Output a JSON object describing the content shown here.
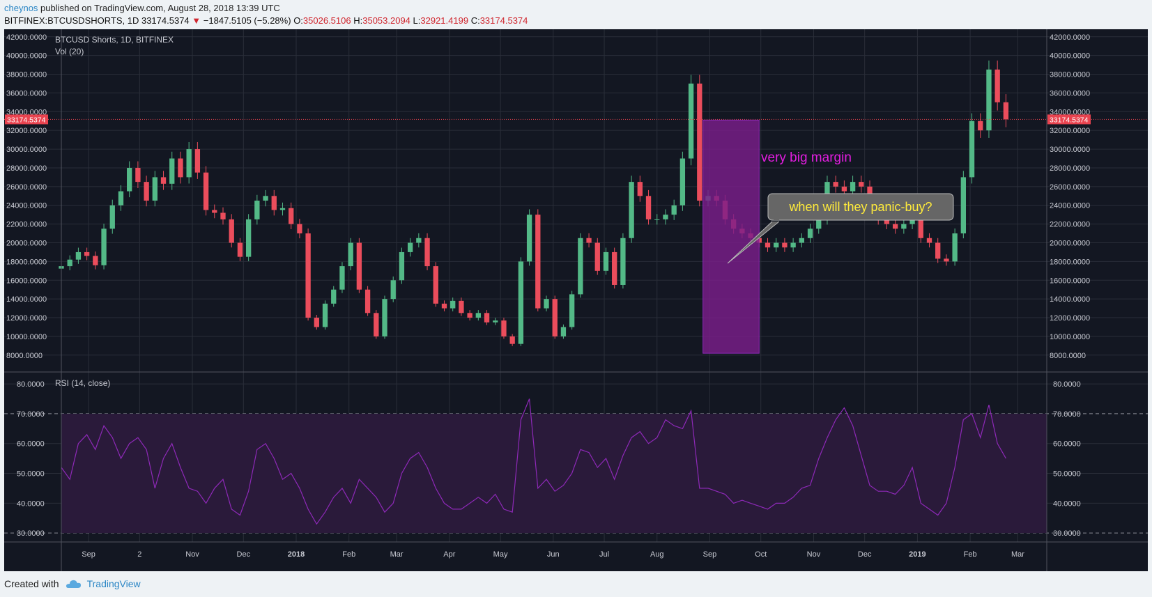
{
  "header": {
    "author": "cheynos",
    "published": " published on TradingView.com, August 28, 2018 13:39 UTC"
  },
  "symbol_line": {
    "symbol": "BITFINEX:BTCUSDSHORTS, 1D",
    "last": "33174.5374",
    "change": "−1847.5105 (−5.28%)",
    "o_label": "O:",
    "o": "35026.5106",
    "h_label": "H:",
    "h": "35053.2094",
    "l_label": "L:",
    "l": "32921.4199",
    "c_label": "C:",
    "c": "33174.5374"
  },
  "legend": {
    "main": "BTCUSD Shorts, 1D, BITFINEX",
    "vol": "Vol (20)",
    "rsi": "RSI (14, close)"
  },
  "price_marker": "33174.5374",
  "annotations": {
    "margin_text": "very big margin",
    "callout_text": "when will they panic-buy?"
  },
  "footer": {
    "created_with": "Created with",
    "brand": "TradingView"
  },
  "colors": {
    "background": "#131722",
    "grid": "#2a2e39",
    "up": "#53b987",
    "down": "#eb4d5c",
    "rsi_line": "#8e29b8",
    "rsi_band": "#2a1a3a",
    "marker": "#e9434f",
    "box": "#7a1d8a",
    "margin_text": "#e31de0",
    "callout_bg": "#666666",
    "callout_text": "#ffeb3b"
  },
  "chart_data": [
    {
      "type": "candlestick",
      "title": "BTCUSD Shorts, 1D, BITFINEX",
      "x_ticks": [
        "Sep",
        "2",
        "Nov",
        "Dec",
        "2018",
        "Feb",
        "Mar",
        "Apr",
        "May",
        "Jun",
        "Jul",
        "Aug",
        "Sep",
        "Oct",
        "Nov",
        "Dec",
        "2019",
        "Feb",
        "Mar"
      ],
      "y_ticks": [
        "42000.0000",
        "40000.0000",
        "38000.0000",
        "36000.0000",
        "34000.0000",
        "32000.0000",
        "30000.0000",
        "28000.0000",
        "26000.0000",
        "24000.0000",
        "22000.0000",
        "20000.0000",
        "18000.0000",
        "16000.0000",
        "14000.0000",
        "12000.0000",
        "10000.0000",
        "8000.0000"
      ],
      "ylim": [
        6200,
        42800
      ],
      "last_price": 33174.5374,
      "close_series": {
        "x_start": "2017-08-16",
        "step_days": 5,
        "values": [
          17500,
          18200,
          19000,
          18600,
          17600,
          21500,
          24000,
          25500,
          28000,
          26500,
          24500,
          27000,
          26300,
          29000,
          27000,
          30000,
          27500,
          23500,
          23200,
          22500,
          20000,
          18500,
          22500,
          24500,
          25000,
          23500,
          23700,
          22000,
          21000,
          12000,
          11000,
          13500,
          15000,
          17500,
          20000,
          15000,
          12500,
          10000,
          14000,
          16000,
          19000,
          20000,
          20500,
          17500,
          13500,
          13000,
          13800,
          12500,
          12000,
          12500,
          11500,
          11700,
          10000,
          9200,
          18000,
          23000,
          13000,
          14000,
          10000,
          11000,
          14500,
          20500,
          20000,
          17000,
          19000,
          15500,
          20500,
          26500,
          25000,
          22500,
          22500,
          23000,
          24000,
          29000,
          37000,
          24500,
          25000,
          24500,
          22500,
          21500,
          21000,
          20500,
          20000,
          19500,
          20000,
          19500,
          20000,
          20500,
          21500,
          22500,
          26500,
          26000,
          25500,
          26500,
          26000,
          23500,
          22500,
          22000,
          21500,
          22000,
          23000,
          20500,
          20000,
          18300,
          18000,
          21000,
          27000,
          33000,
          32000,
          38500,
          35000,
          33174.5374
        ]
      },
      "annotation_box": {
        "x_start": "2018-08-28",
        "x_end": "2018-09-30",
        "y_low": 8200,
        "y_high": 33100
      }
    },
    {
      "type": "line",
      "title": "RSI (14, close)",
      "y_ticks": [
        "80.0000",
        "70.0000",
        "60.0000",
        "50.0000",
        "40.0000",
        "30.0000"
      ],
      "ylim": [
        27,
        84
      ],
      "band": [
        30,
        70
      ],
      "x_start": "2017-08-16",
      "step_days": 5,
      "values": [
        52,
        48,
        60,
        63,
        58,
        66,
        62,
        55,
        60,
        62,
        58,
        45,
        55,
        60,
        52,
        45,
        44,
        40,
        45,
        48,
        38,
        36,
        44,
        58,
        60,
        55,
        48,
        50,
        45,
        38,
        33,
        37,
        42,
        45,
        40,
        48,
        45,
        42,
        37,
        40,
        50,
        55,
        57,
        52,
        45,
        40,
        38,
        38,
        40,
        42,
        40,
        43,
        38,
        37,
        68,
        75,
        45,
        48,
        44,
        46,
        50,
        58,
        57,
        52,
        55,
        48,
        56,
        62,
        64,
        60,
        62,
        68,
        66,
        65,
        71,
        45,
        45,
        44,
        43,
        40,
        41,
        40,
        39,
        38,
        40,
        40,
        42,
        45,
        46,
        55,
        62,
        68,
        72,
        66,
        56,
        46,
        44,
        44,
        43,
        46,
        52,
        40,
        38,
        36,
        40,
        52,
        68,
        70,
        62,
        73,
        60,
        55
      ]
    }
  ]
}
